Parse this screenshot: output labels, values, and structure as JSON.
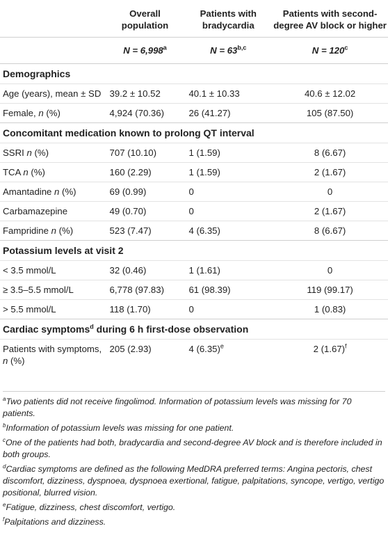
{
  "header": {
    "col1": "",
    "col2": "Overall population",
    "col3": "Patients with bradycardia",
    "col4": "Patients with second-degree AV block or higher",
    "n2": "N = 6,998",
    "n2_sup": "a",
    "n3": "N = 63",
    "n3_sup": "b,c",
    "n4": "N = 120",
    "n4_sup": "c"
  },
  "sections": {
    "demographics": "Demographics",
    "medication": "Concomitant medication known to prolong QT interval",
    "potassium": "Potassium levels at visit 2",
    "cardiac_pre": "Cardiac symptoms",
    "cardiac_sup": "d",
    "cardiac_post": " during 6 h first-dose observation"
  },
  "rows": {
    "age": {
      "label": "Age (years), mean ± SD",
      "overall": "39.2 ± 10.52",
      "brady": "40.1 ± 10.33",
      "av": "40.6 ± 12.02"
    },
    "female": {
      "label_pre": "Female, ",
      "label_n": "n",
      "label_post": " (%)",
      "overall": "4,924 (70.36)",
      "brady": "26 (41.27)",
      "av": "105 (87.50)"
    },
    "ssri": {
      "label_pre": "SSRI ",
      "label_n": "n",
      "label_post": " (%)",
      "overall": "707 (10.10)",
      "brady": "1 (1.59)",
      "av": "8 (6.67)"
    },
    "tca": {
      "label_pre": "TCA ",
      "label_n": "n",
      "label_post": " (%)",
      "overall": "160 (2.29)",
      "brady": "1 (1.59)",
      "av": "2 (1.67)"
    },
    "amantadine": {
      "label_pre": "Amantadine ",
      "label_n": "n",
      "label_post": " (%)",
      "overall": "69 (0.99)",
      "brady": "0",
      "av": "0"
    },
    "carbamazepine": {
      "label": "Carbamazepine",
      "overall": "49 (0.70)",
      "brady": "0",
      "av": "2 (1.67)"
    },
    "fampridine": {
      "label_pre": "Fampridine ",
      "label_n": "n",
      "label_post": " (%)",
      "overall": "523 (7.47)",
      "brady": "4 (6.35)",
      "av": "8 (6.67)"
    },
    "k_low": {
      "label": "< 3.5 mmol/L",
      "overall": "32 (0.46)",
      "brady": "1 (1.61)",
      "av": "0"
    },
    "k_mid": {
      "label": "≥ 3.5–5.5 mmol/L",
      "overall": "6,778 (97.83)",
      "brady": "61 (98.39)",
      "av": "119 (99.17)"
    },
    "k_high": {
      "label": "> 5.5 mmol/L",
      "overall": "118 (1.70)",
      "brady": "0",
      "av": "1 (0.83)"
    },
    "symptoms": {
      "label_pre": "Patients with symptoms, ",
      "label_n": "n",
      "label_post": " (%)",
      "overall": "205 (2.93)",
      "brady": "4 (6.35)",
      "brady_sup": "e",
      "av": "2 (1.67)",
      "av_sup": "f"
    }
  },
  "footnotes": [
    {
      "mark": "a",
      "text": "Two patients did not receive fingolimod. Information of potassium levels was missing for 70 patients."
    },
    {
      "mark": "b",
      "text": "Information of potassium levels was missing for one patient."
    },
    {
      "mark": "c",
      "text": "One of the patients had both, bradycardia and second-degree AV block and is therefore included in both groups."
    },
    {
      "mark": "d",
      "text": "Cardiac symptoms are defined as the following MedDRA preferred terms: Angina pectoris, chest discomfort, dizziness, dyspnoea, dyspnoea exertional, fatigue, palpitations, syncope, vertigo, vertigo positional, blurred vision."
    },
    {
      "mark": "e",
      "text": "Fatigue, dizziness, chest discomfort, vertigo."
    },
    {
      "mark": "f",
      "text": "Palpitations and dizziness."
    }
  ]
}
